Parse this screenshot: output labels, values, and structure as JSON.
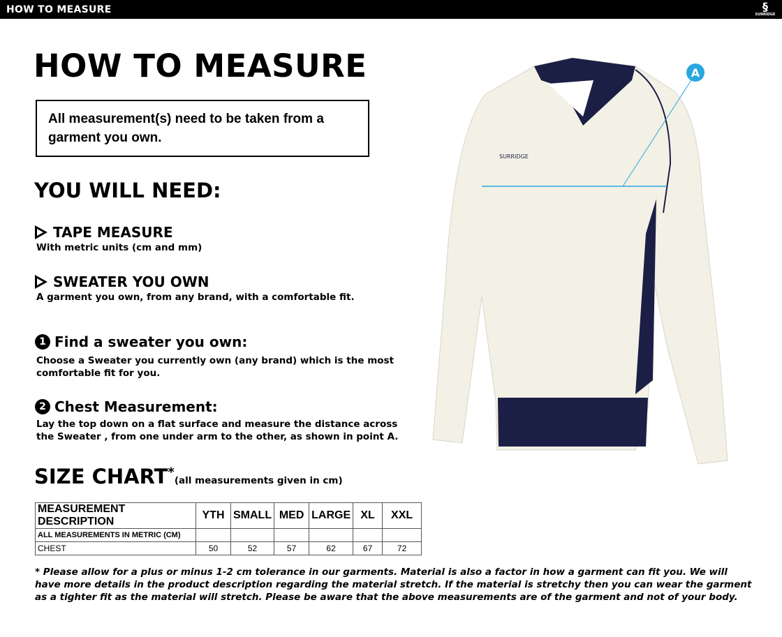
{
  "header": {
    "title": "HOW TO MEASURE",
    "logo_text": "SURRIDGE"
  },
  "title": "HOW TO MEASURE",
  "note": "All measurement(s) need to be taken from a garment you own.",
  "need_heading": "YOU WILL NEED:",
  "needs": [
    {
      "title": "TAPE MEASURE",
      "text": "With metric units (cm and mm)"
    },
    {
      "title": "SWEATER YOU OWN",
      "text": "A garment you own, from any brand, with a comfortable fit."
    }
  ],
  "steps": [
    {
      "num": "1",
      "title": "Find a sweater you own:",
      "text": "Choose a Sweater you currently own (any brand) which is the most comfortable fit for you."
    },
    {
      "num": "2",
      "title": "Chest Measurement:",
      "text": "Lay the top down on a flat surface and measure the distance across the Sweater , from one under arm to the other, as shown in point A."
    }
  ],
  "size_chart": {
    "title": "SIZE CHART",
    "asterisk": "*",
    "subtitle": "(all measurements given in cm)",
    "headers": [
      "MEASUREMENT DESCRIPTION",
      "YTH",
      "SMALL",
      "MED",
      "LARGE",
      "XL",
      "XXL"
    ],
    "unit_row": "ALL MEASUREMENTS IN METRIC (CM)",
    "rows": [
      {
        "label": "CHEST",
        "values": [
          "50",
          "52",
          "57",
          "62",
          "67",
          "72"
        ]
      }
    ]
  },
  "footnote": "* Please allow for a plus or minus 1-2 cm tolerance in our garments. Material is also a factor in how a garment can fit you. We will have more details in the product description regarding the material stretch.  If the material is stretchy then you can wear the garment as a tighter fit as the material will stretch.  Please be aware that the above measurements are of the garment and not of your body.",
  "image": {
    "marker": "A",
    "brand": "SURRIDGE",
    "colors": {
      "marker": "#29a8e0",
      "navy": "#1c1f45",
      "cream": "#f3f1e6"
    }
  }
}
